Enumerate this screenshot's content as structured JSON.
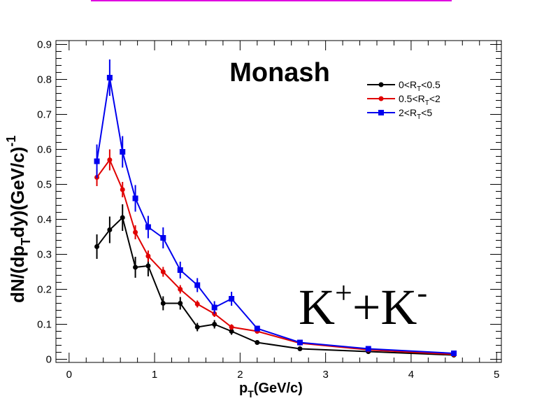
{
  "chart_data": {
    "type": "line",
    "xlabel": "p_T(GeV/c)",
    "ylabel": "dN/(dp_T dy)(GeV/c)^-1",
    "xlim": [
      0,
      5
    ],
    "ylim": [
      0,
      0.9
    ],
    "x_ticks": [
      0,
      1,
      2,
      3,
      4,
      5
    ],
    "y_ticks": [
      0,
      0.1,
      0.2,
      0.3,
      0.4,
      0.5,
      0.6,
      0.7,
      0.8,
      0.9
    ],
    "annotations": {
      "model": "Monash",
      "particle": "K⁺+K⁻"
    },
    "legend_position": "top-right",
    "grid": false,
    "series": [
      {
        "name": "0<R_T<0.5",
        "color": "#000000",
        "marker": "circle",
        "x": [
          0.325,
          0.475,
          0.625,
          0.775,
          0.925,
          1.1,
          1.3,
          1.5,
          1.7,
          1.9,
          2.2,
          2.7,
          3.5,
          4.5
        ],
        "y": [
          0.322,
          0.37,
          0.405,
          0.263,
          0.267,
          0.16,
          0.16,
          0.092,
          0.1,
          0.08,
          0.048,
          0.03,
          0.022,
          0.012
        ],
        "err": [
          0.035,
          0.038,
          0.038,
          0.03,
          0.03,
          0.02,
          0.018,
          0.012,
          0.012,
          0.01,
          0.005,
          0.004,
          0.003,
          0.002
        ]
      },
      {
        "name": "0.5<R_T<2",
        "color": "#e00000",
        "marker": "circle",
        "x": [
          0.325,
          0.475,
          0.625,
          0.775,
          0.925,
          1.1,
          1.3,
          1.5,
          1.7,
          1.9,
          2.2,
          2.7,
          3.5,
          4.5
        ],
        "y": [
          0.52,
          0.57,
          0.485,
          0.363,
          0.295,
          0.25,
          0.2,
          0.158,
          0.13,
          0.092,
          0.08,
          0.046,
          0.027,
          0.014
        ],
        "err": [
          0.025,
          0.03,
          0.022,
          0.02,
          0.016,
          0.014,
          0.012,
          0.01,
          0.009,
          0.008,
          0.005,
          0.003,
          0.002,
          0.002
        ]
      },
      {
        "name": "2<R_T<5",
        "color": "#0000ee",
        "marker": "square",
        "x": [
          0.325,
          0.475,
          0.625,
          0.775,
          0.925,
          1.1,
          1.3,
          1.5,
          1.7,
          1.9,
          2.2,
          2.7,
          3.5,
          4.5
        ],
        "y": [
          0.566,
          0.805,
          0.593,
          0.46,
          0.378,
          0.347,
          0.255,
          0.212,
          0.148,
          0.173,
          0.088,
          0.048,
          0.03,
          0.017
        ],
        "err": [
          0.048,
          0.052,
          0.045,
          0.038,
          0.032,
          0.03,
          0.024,
          0.02,
          0.018,
          0.02,
          0.008,
          0.005,
          0.004,
          0.003
        ]
      }
    ]
  }
}
